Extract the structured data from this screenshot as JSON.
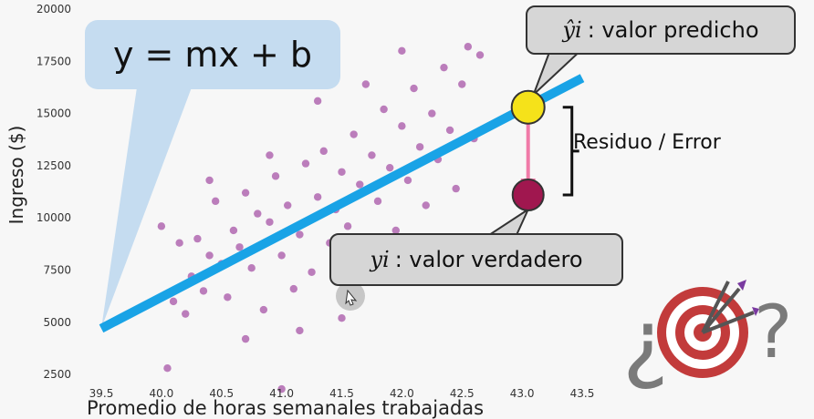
{
  "chart_data": {
    "type": "scatter",
    "xlabel": "Promedio de horas semanales trabajadas",
    "ylabel": "Ingreso ($)",
    "xlim": [
      39.5,
      43.5
    ],
    "ylim": [
      1500,
      20000
    ],
    "xticks": [
      "39.5",
      "40.0",
      "40.5",
      "41.0",
      "41.5",
      "42.0",
      "42.5",
      "43.0",
      "43.5"
    ],
    "yticks": [
      "2500",
      "5000",
      "7500",
      "10000",
      "12500",
      "15000",
      "17500",
      "20000"
    ],
    "points": [
      [
        40.0,
        9600
      ],
      [
        40.05,
        2800
      ],
      [
        40.1,
        6000
      ],
      [
        40.15,
        8800
      ],
      [
        40.2,
        5400
      ],
      [
        40.25,
        7200
      ],
      [
        40.3,
        9000
      ],
      [
        40.35,
        6500
      ],
      [
        40.4,
        8200
      ],
      [
        40.45,
        10800
      ],
      [
        40.5,
        7800
      ],
      [
        40.55,
        6200
      ],
      [
        40.6,
        9400
      ],
      [
        40.65,
        8600
      ],
      [
        40.7,
        11200
      ],
      [
        40.75,
        7600
      ],
      [
        40.8,
        10200
      ],
      [
        40.85,
        5600
      ],
      [
        40.9,
        9800
      ],
      [
        40.95,
        12000
      ],
      [
        41.0,
        8200
      ],
      [
        41.0,
        1800
      ],
      [
        41.05,
        10600
      ],
      [
        41.1,
        6600
      ],
      [
        41.15,
        9200
      ],
      [
        41.2,
        12600
      ],
      [
        41.25,
        7400
      ],
      [
        41.3,
        11000
      ],
      [
        41.35,
        13200
      ],
      [
        41.4,
        8800
      ],
      [
        41.45,
        10400
      ],
      [
        41.5,
        12200
      ],
      [
        41.5,
        5200
      ],
      [
        41.55,
        9600
      ],
      [
        41.6,
        14000
      ],
      [
        41.65,
        11600
      ],
      [
        41.7,
        8400
      ],
      [
        41.75,
        13000
      ],
      [
        41.8,
        10800
      ],
      [
        41.85,
        15200
      ],
      [
        41.9,
        12400
      ],
      [
        41.95,
        9400
      ],
      [
        42.0,
        14400
      ],
      [
        42.05,
        11800
      ],
      [
        42.1,
        16200
      ],
      [
        42.15,
        13400
      ],
      [
        42.2,
        10600
      ],
      [
        42.25,
        15000
      ],
      [
        42.3,
        12800
      ],
      [
        42.35,
        17200
      ],
      [
        42.4,
        14200
      ],
      [
        42.45,
        11400
      ],
      [
        42.5,
        16400
      ],
      [
        42.55,
        18200
      ],
      [
        42.6,
        13800
      ],
      [
        42.65,
        17800
      ],
      [
        42.2,
        7600
      ],
      [
        41.6,
        6200
      ],
      [
        40.7,
        4200
      ],
      [
        41.3,
        15600
      ],
      [
        40.9,
        13000
      ],
      [
        41.7,
        16400
      ],
      [
        42.0,
        18000
      ],
      [
        41.9,
        7200
      ],
      [
        40.4,
        11800
      ],
      [
        41.15,
        4600
      ]
    ],
    "regression_line": {
      "x": [
        39.5,
        43.5
      ],
      "y": [
        4700,
        16700
      ],
      "label": "y = mx + b"
    },
    "predicted_point": {
      "x": 43.05,
      "y": 15300
    },
    "true_point": {
      "x": 43.05,
      "y": 11100
    },
    "colors": {
      "points": "#8b1a8b",
      "line": "#19a3e6",
      "predicted": "#f5e21a",
      "true": "#a0174f",
      "residual": "#f07aa8"
    }
  },
  "annotations": {
    "equation": "y = mx + b",
    "predicted_symbol": "ŷi",
    "predicted_text": ": valor predicho",
    "true_symbol": "yi",
    "true_text": ": valor verdadero",
    "residual_label": "Residuo / Error"
  },
  "icons": [
    "target-icon",
    "question-marks-icon",
    "cursor-icon"
  ]
}
